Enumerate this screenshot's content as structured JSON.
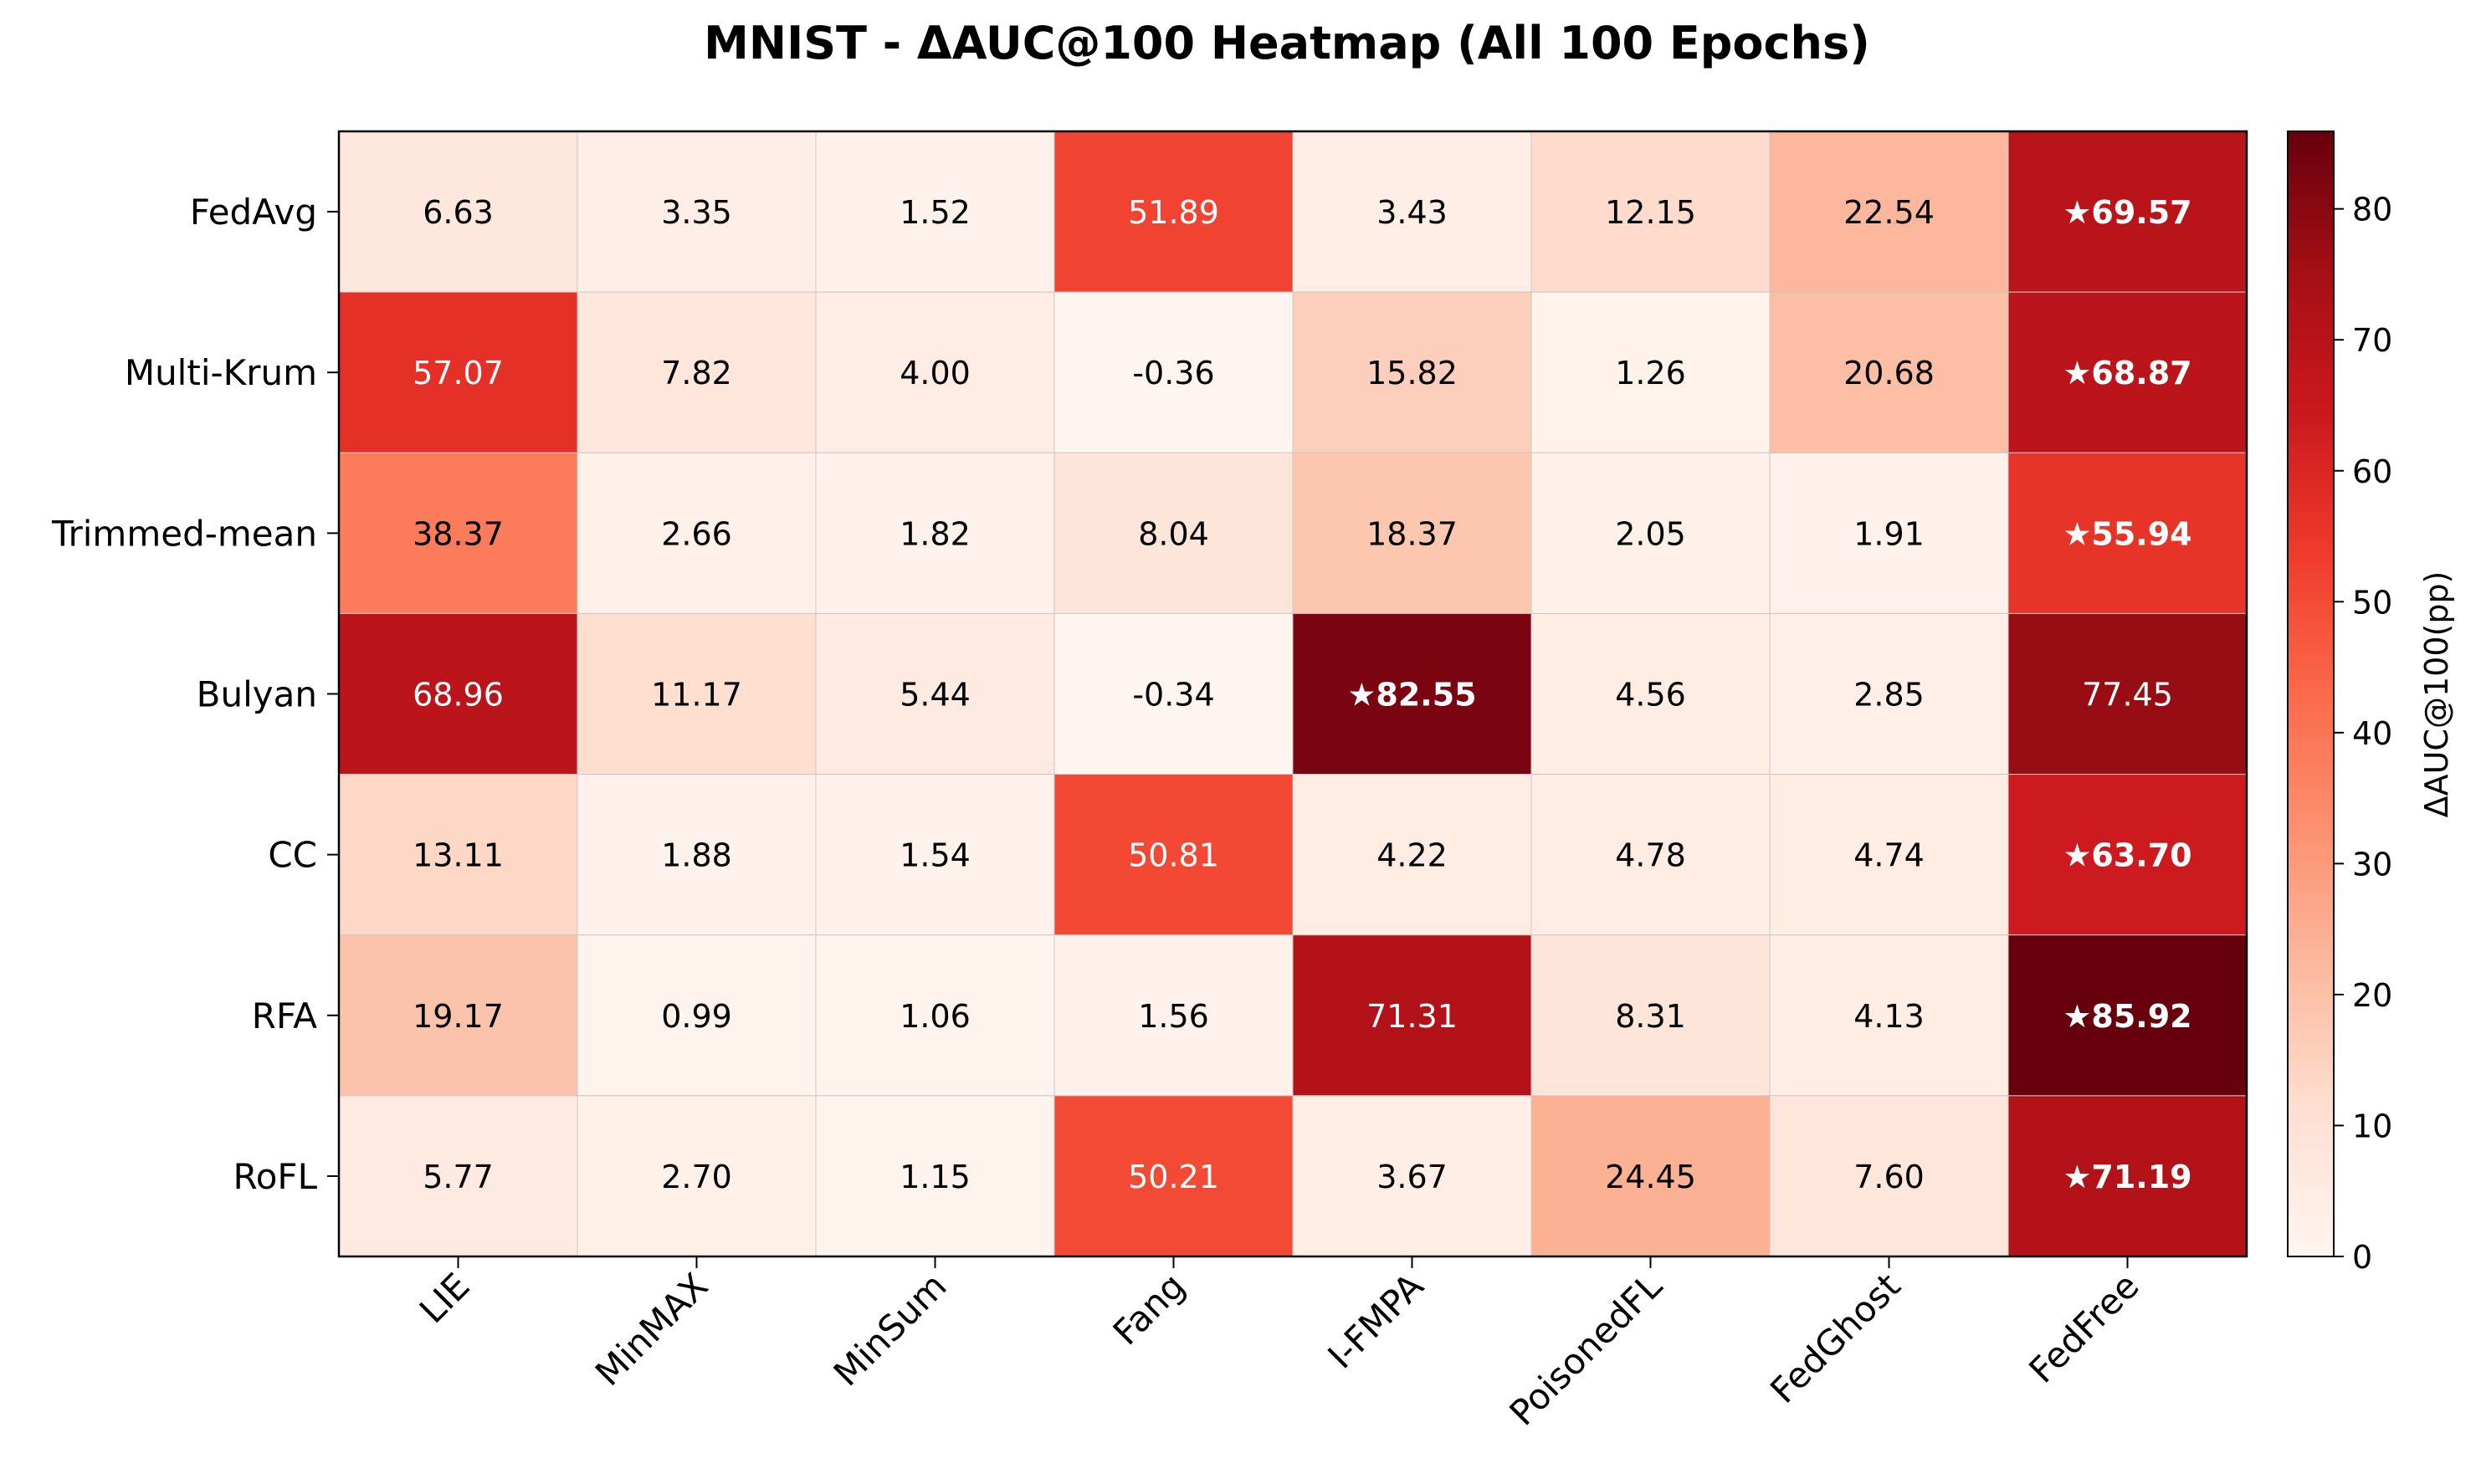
{
  "chart_data": {
    "type": "heatmap",
    "title": "MNIST - ΔAUC@100 Heatmap (All 100 Epochs)",
    "x_categories": [
      "LIE",
      "MinMAX",
      "MinSum",
      "Fang",
      "I-FMPA",
      "PoisonedFL",
      "FedGhost",
      "FedFree"
    ],
    "y_categories": [
      "FedAvg",
      "Multi-Krum",
      "Trimmed-mean",
      "Bulyan",
      "CC",
      "RFA",
      "RoFL"
    ],
    "values": [
      [
        6.63,
        3.35,
        1.52,
        51.89,
        3.43,
        12.15,
        22.54,
        69.57
      ],
      [
        57.07,
        7.82,
        4.0,
        -0.36,
        15.82,
        1.26,
        20.68,
        68.87
      ],
      [
        38.37,
        2.66,
        1.82,
        8.04,
        18.37,
        2.05,
        1.91,
        55.94
      ],
      [
        68.96,
        11.17,
        5.44,
        -0.34,
        82.55,
        4.56,
        2.85,
        77.45
      ],
      [
        13.11,
        1.88,
        1.54,
        50.81,
        4.22,
        4.78,
        4.74,
        63.7
      ],
      [
        19.17,
        0.99,
        1.06,
        1.56,
        71.31,
        8.31,
        4.13,
        85.92
      ],
      [
        5.77,
        2.7,
        1.15,
        50.21,
        3.67,
        24.45,
        7.6,
        71.19
      ]
    ],
    "cell_labels": [
      [
        "6.63",
        "3.35",
        "1.52",
        "51.89",
        "3.43",
        "12.15",
        "22.54",
        "★69.57"
      ],
      [
        "57.07",
        "7.82",
        "4.00",
        "-0.36",
        "15.82",
        "1.26",
        "20.68",
        "★68.87"
      ],
      [
        "38.37",
        "2.66",
        "1.82",
        "8.04",
        "18.37",
        "2.05",
        "1.91",
        "★55.94"
      ],
      [
        "68.96",
        "11.17",
        "5.44",
        "-0.34",
        "★82.55",
        "4.56",
        "2.85",
        "77.45"
      ],
      [
        "13.11",
        "1.88",
        "1.54",
        "50.81",
        "4.22",
        "4.78",
        "4.74",
        "★63.70"
      ],
      [
        "19.17",
        "0.99",
        "1.06",
        "1.56",
        "71.31",
        "8.31",
        "4.13",
        "★85.92"
      ],
      [
        "5.77",
        "2.70",
        "1.15",
        "50.21",
        "3.67",
        "24.45",
        "7.60",
        "★71.19"
      ]
    ],
    "highlighted": [
      [
        0,
        7
      ],
      [
        1,
        7
      ],
      [
        2,
        7
      ],
      [
        3,
        4
      ],
      [
        4,
        7
      ],
      [
        5,
        7
      ],
      [
        6,
        7
      ]
    ],
    "colorscale": "Reds",
    "colorbar": {
      "label": "ΔAUC@100(pp)",
      "range": [
        0,
        85.92
      ],
      "ticks": [
        0,
        10,
        20,
        30,
        40,
        50,
        60,
        70,
        80
      ]
    },
    "colors": {
      "low": "#fff5f0",
      "high": "#67000d"
    },
    "grid": true
  }
}
